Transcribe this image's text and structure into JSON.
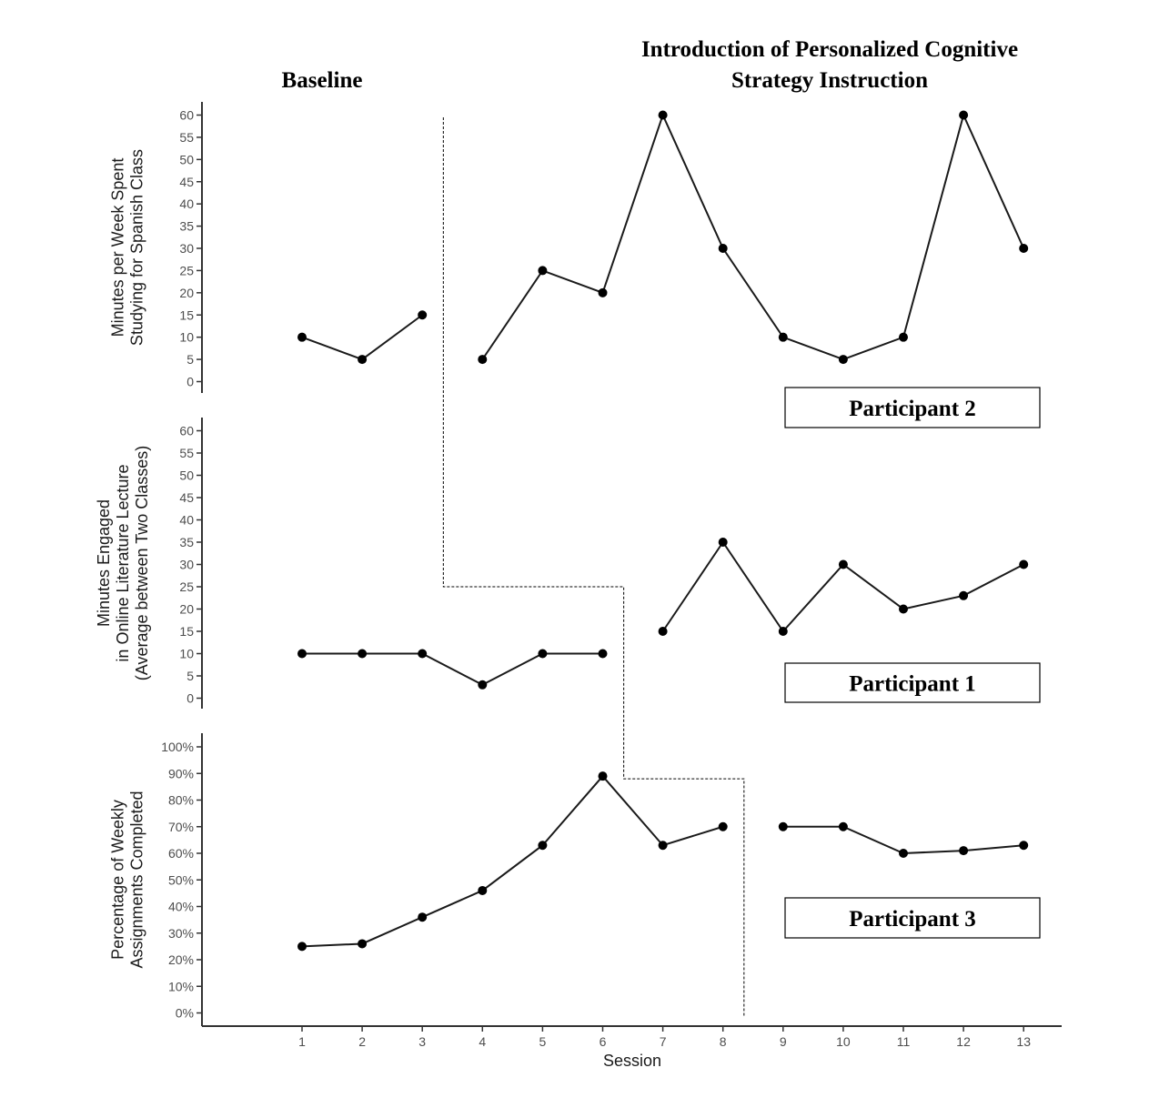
{
  "header": {
    "baseline_title": "Baseline",
    "intervention_title_line1": "Introduction of Personalized Cognitive",
    "intervention_title_line2": "Strategy Instruction"
  },
  "x_axis": {
    "label": "Session",
    "ticks": [
      "1",
      "2",
      "3",
      "4",
      "5",
      "6",
      "7",
      "8",
      "9",
      "10",
      "11",
      "12",
      "13"
    ]
  },
  "chart_data": [
    {
      "type": "line",
      "participant": "Participant 2",
      "ylabel": [
        "Minutes per Week Spent",
        "Studying for Spanish Class"
      ],
      "ylim": [
        0,
        60
      ],
      "yticks": [
        0,
        5,
        10,
        15,
        20,
        25,
        30,
        35,
        40,
        45,
        50,
        55,
        60
      ],
      "ytick_labels": [
        "0",
        "5",
        "10",
        "15",
        "20",
        "25",
        "30",
        "35",
        "40",
        "45",
        "50",
        "55",
        "60"
      ],
      "phase_change_after_session": 3,
      "series": [
        {
          "phase": "baseline",
          "x": [
            1,
            2,
            3
          ],
          "y": [
            10,
            5,
            15
          ]
        },
        {
          "phase": "intervention",
          "x": [
            4,
            5,
            6,
            7,
            8,
            9,
            10,
            11,
            12,
            13
          ],
          "y": [
            5,
            25,
            20,
            60,
            30,
            10,
            5,
            10,
            60,
            30
          ]
        }
      ]
    },
    {
      "type": "line",
      "participant": "Participant 1",
      "ylabel": [
        "Minutes Engaged",
        "in Online Literature Lecture",
        "(Average between Two Classes)"
      ],
      "ylim": [
        0,
        60
      ],
      "yticks": [
        0,
        5,
        10,
        15,
        20,
        25,
        30,
        35,
        40,
        45,
        50,
        55,
        60
      ],
      "ytick_labels": [
        "0",
        "5",
        "10",
        "15",
        "20",
        "25",
        "30",
        "35",
        "40",
        "45",
        "50",
        "55",
        "60"
      ],
      "phase_change_after_session": 6,
      "series": [
        {
          "phase": "baseline",
          "x": [
            1,
            2,
            3,
            4,
            5,
            6
          ],
          "y": [
            10,
            10,
            10,
            3,
            10,
            10
          ]
        },
        {
          "phase": "intervention",
          "x": [
            7,
            8,
            9,
            10,
            11,
            12,
            13
          ],
          "y": [
            15,
            35,
            15,
            30,
            20,
            23,
            30
          ]
        }
      ]
    },
    {
      "type": "line",
      "participant": "Participant 3",
      "ylabel": [
        "Percentage of Weekly",
        "Assignments Completed"
      ],
      "ylim": [
        0,
        100
      ],
      "yticks": [
        0,
        10,
        20,
        30,
        40,
        50,
        60,
        70,
        80,
        90,
        100
      ],
      "ytick_labels": [
        "0%",
        "10%",
        "20%",
        "30%",
        "40%",
        "50%",
        "60%",
        "70%",
        "80%",
        "90%",
        "100%"
      ],
      "phase_change_after_session": 8,
      "series": [
        {
          "phase": "baseline",
          "x": [
            1,
            2,
            3,
            4,
            5,
            6,
            7,
            8
          ],
          "y": [
            25,
            26,
            36,
            46,
            63,
            89,
            63,
            70
          ]
        },
        {
          "phase": "intervention",
          "x": [
            9,
            10,
            11,
            12,
            13
          ],
          "y": [
            70,
            70,
            60,
            61,
            63
          ]
        }
      ]
    }
  ]
}
